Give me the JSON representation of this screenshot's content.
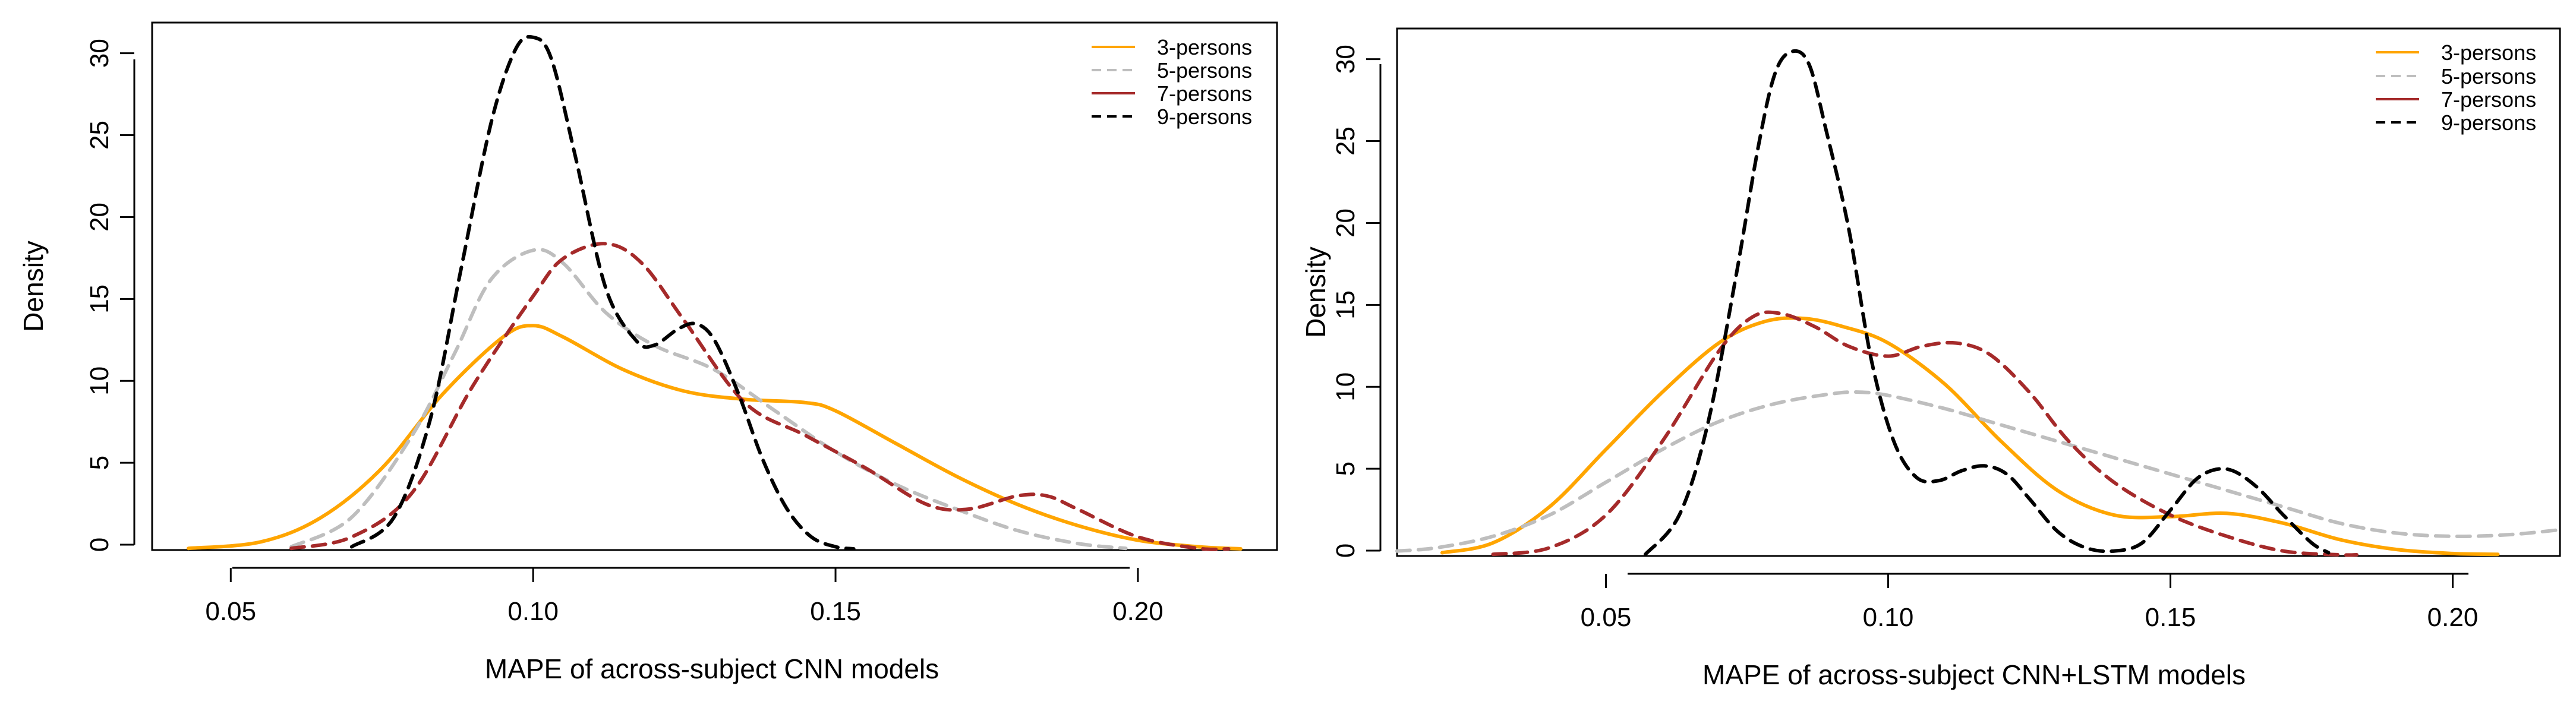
{
  "chart_data": [
    {
      "type": "line",
      "subtype": "density",
      "title": "",
      "xlabel": "MAPE of across-subject CNN models",
      "ylabel": "Density",
      "xlim": [
        0.037,
        0.223
      ],
      "ylim": [
        0,
        32.2
      ],
      "xticks": [
        0.05,
        0.1,
        0.15,
        0.2
      ],
      "xtick_labels": [
        "0.05",
        "0.10",
        "0.15",
        "0.20"
      ],
      "yticks": [
        0,
        5,
        10,
        15,
        20,
        25,
        30
      ],
      "ytick_labels": [
        "0",
        "5",
        "10",
        "15",
        "20",
        "25",
        "30"
      ],
      "grid": false,
      "legend_position": "top-right",
      "series": [
        {
          "name": "3-persons",
          "color": "#FFA500",
          "dash": "solid",
          "x": [
            0.043,
            0.055,
            0.065,
            0.075,
            0.085,
            0.095,
            0.1,
            0.105,
            0.115,
            0.125,
            0.135,
            0.145,
            0.15,
            0.16,
            0.17,
            0.18,
            0.19,
            0.2,
            0.21,
            0.217
          ],
          "y": [
            0.1,
            0.5,
            2,
            5,
            9.5,
            13,
            13.7,
            13,
            11,
            9.7,
            9.2,
            9,
            8.5,
            6.5,
            4.5,
            2.8,
            1.5,
            0.6,
            0.2,
            0.05
          ]
        },
        {
          "name": "5-persons",
          "color": "#BEBEBE",
          "dash": "dashed",
          "x": [
            0.06,
            0.07,
            0.08,
            0.087,
            0.093,
            0.1,
            0.105,
            0.112,
            0.12,
            0.13,
            0.14,
            0.15,
            0.16,
            0.17,
            0.18,
            0.19,
            0.198
          ],
          "y": [
            0.2,
            2,
            7,
            12,
            16.5,
            18.3,
            17.5,
            14.5,
            12.5,
            11,
            8.5,
            6,
            4,
            2.5,
            1.2,
            0.4,
            0.1
          ]
        },
        {
          "name": "7-persons",
          "color": "#A52A2A",
          "dash": "dashed",
          "x": [
            0.06,
            0.07,
            0.08,
            0.09,
            0.1,
            0.105,
            0.112,
            0.118,
            0.125,
            0.135,
            0.145,
            0.155,
            0.165,
            0.172,
            0.18,
            0.185,
            0.19,
            0.2,
            0.21,
            0.215
          ],
          "y": [
            0.1,
            0.8,
            3.5,
            10,
            15.5,
            17.8,
            18.7,
            17.5,
            14,
            9,
            7,
            5,
            2.8,
            2.5,
            3.3,
            3.3,
            2.5,
            0.8,
            0.1,
            0.02
          ]
        },
        {
          "name": "9-persons",
          "color": "#000000",
          "dash": "dashed",
          "x": [
            0.07,
            0.077,
            0.083,
            0.088,
            0.093,
            0.097,
            0.1,
            0.103,
            0.107,
            0.112,
            0.117,
            0.12,
            0.124,
            0.127,
            0.13,
            0.134,
            0.138,
            0.142,
            0.146,
            0.15,
            0.153
          ],
          "y": [
            0.2,
            2,
            8,
            17,
            26,
            30.5,
            31.3,
            30,
            24,
            16,
            12.8,
            12.5,
            13.5,
            13.8,
            12.8,
            9.5,
            5.5,
            2.5,
            0.8,
            0.2,
            0.05
          ]
        }
      ]
    },
    {
      "type": "line",
      "subtype": "density",
      "title": "",
      "xlabel": "MAPE of across-subject CNN+LSTM models",
      "ylabel": "Density",
      "xlim": [
        0.013,
        0.219
      ],
      "ylim": [
        0,
        32.2
      ],
      "xticks": [
        0.05,
        0.1,
        0.15,
        0.2
      ],
      "xtick_labels": [
        "0.05",
        "0.10",
        "0.15",
        "0.20"
      ],
      "yticks": [
        0,
        5,
        10,
        15,
        20,
        25,
        30
      ],
      "ytick_labels": [
        "0",
        "5",
        "10",
        "15",
        "20",
        "25",
        "30"
      ],
      "grid": false,
      "legend_position": "top-right",
      "series": [
        {
          "name": "3-persons",
          "color": "#FFA500",
          "dash": "solid",
          "x": [
            0.021,
            0.03,
            0.04,
            0.05,
            0.06,
            0.07,
            0.078,
            0.085,
            0.092,
            0.1,
            0.11,
            0.12,
            0.13,
            0.14,
            0.15,
            0.16,
            0.17,
            0.18,
            0.19,
            0.2,
            0.208
          ],
          "y": [
            0.2,
            0.8,
            3,
            6.5,
            10,
            13,
            14.3,
            14.5,
            14,
            13,
            10.5,
            7,
            4,
            2.5,
            2.4,
            2.6,
            2,
            1,
            0.4,
            0.15,
            0.1
          ]
        },
        {
          "name": "5-persons",
          "color": "#BEBEBE",
          "dash": "dashed",
          "x": [
            0.013,
            0.02,
            0.03,
            0.04,
            0.05,
            0.06,
            0.07,
            0.08,
            0.09,
            0.095,
            0.1,
            0.11,
            0.12,
            0.13,
            0.14,
            0.15,
            0.16,
            0.17,
            0.18,
            0.19,
            0.2,
            0.21,
            0.219
          ],
          "y": [
            0.3,
            0.5,
            1.2,
            2.5,
            4.5,
            6.5,
            8.2,
            9.3,
            9.9,
            10,
            9.8,
            9,
            8,
            7,
            6,
            5,
            4,
            3,
            2,
            1.4,
            1.2,
            1.3,
            1.6
          ]
        },
        {
          "name": "7-persons",
          "color": "#A52A2A",
          "dash": "dashed",
          "x": [
            0.03,
            0.04,
            0.05,
            0.06,
            0.07,
            0.076,
            0.081,
            0.087,
            0.093,
            0.1,
            0.106,
            0.112,
            0.118,
            0.125,
            0.132,
            0.14,
            0.15,
            0.16,
            0.17,
            0.18,
            0.183
          ],
          "y": [
            0.1,
            0.5,
            2.5,
            7,
            12.5,
            14.6,
            14.8,
            14,
            12.8,
            12.2,
            12.8,
            13,
            12.3,
            10,
            7,
            4.5,
            2.5,
            1.2,
            0.3,
            0.03,
            0.02
          ]
        },
        {
          "name": "9-persons",
          "color": "#000000",
          "dash": "dashed",
          "x": [
            0.057,
            0.063,
            0.068,
            0.073,
            0.077,
            0.08,
            0.083,
            0.086,
            0.089,
            0.093,
            0.097,
            0.101,
            0.105,
            0.109,
            0.113,
            0.117,
            0.121,
            0.125,
            0.13,
            0.135,
            0.14,
            0.145,
            0.15,
            0.155,
            0.16,
            0.165,
            0.17,
            0.175,
            0.178
          ],
          "y": [
            0.1,
            2.5,
            8,
            17,
            25,
            29.5,
            30.8,
            30,
            26,
            20,
            12,
            7,
            4.8,
            4.6,
            5.2,
            5.5,
            5,
            3.5,
            1.5,
            0.5,
            0.3,
            0.8,
            2.8,
            4.8,
            5.3,
            4.3,
            2.5,
            0.8,
            0.2
          ]
        }
      ]
    }
  ]
}
